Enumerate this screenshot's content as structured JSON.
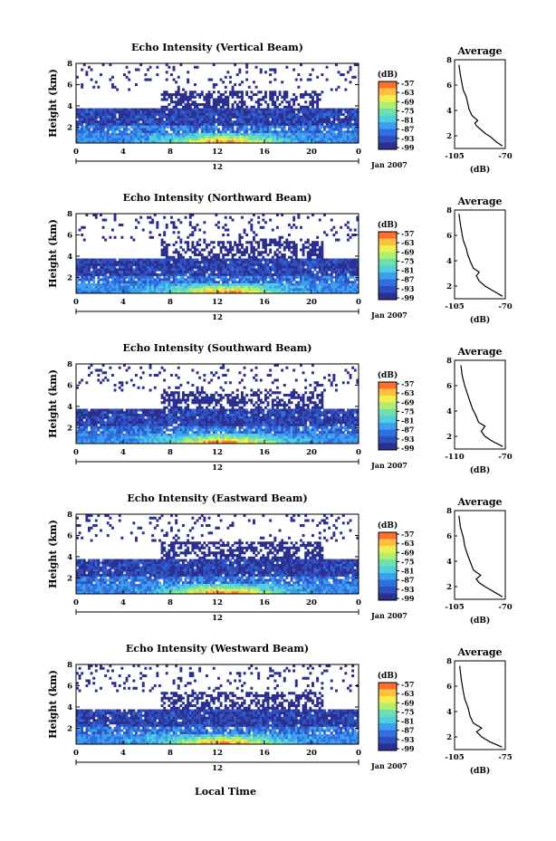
{
  "panels": [
    {
      "title": "Echo Intensity (Vertical Beam)",
      "ylabel": "Height (km)",
      "y_ticks": [
        "2",
        "4",
        "6",
        "8"
      ],
      "x_ticks": [
        "0",
        "4",
        "8",
        "12",
        "16",
        "20",
        "0"
      ],
      "date_label": "12",
      "month_label": "Jan 2007",
      "cbar_unit": "(dB)",
      "cbar_ticks": [
        "-57",
        "-63",
        "-69",
        "-75",
        "-81",
        "-87",
        "-93",
        "-99"
      ],
      "avg_title": "Average",
      "avg_xticks": [
        "-105",
        "-70"
      ],
      "avg_yticks": [
        "2",
        "4",
        "6",
        "8"
      ],
      "avg_xlabel": "(dB)"
    },
    {
      "title": "Echo Intensity (Northward Beam)",
      "ylabel": "Height (km)",
      "y_ticks": [
        "2",
        "4",
        "6",
        "8"
      ],
      "x_ticks": [
        "0",
        "4",
        "8",
        "12",
        "16",
        "20",
        "0"
      ],
      "date_label": "12",
      "month_label": "Jan 2007",
      "cbar_unit": "(dB)",
      "cbar_ticks": [
        "-57",
        "-63",
        "-69",
        "-75",
        "-81",
        "-87",
        "-93",
        "-99"
      ],
      "avg_title": "Average",
      "avg_xticks": [
        "-105",
        "-70"
      ],
      "avg_yticks": [
        "2",
        "4",
        "6",
        "8"
      ],
      "avg_xlabel": "(dB)"
    },
    {
      "title": "Echo Intensity (Southward Beam)",
      "ylabel": "Height (km)",
      "y_ticks": [
        "2",
        "4",
        "6",
        "8"
      ],
      "x_ticks": [
        "0",
        "4",
        "8",
        "12",
        "16",
        "20",
        "0"
      ],
      "date_label": "12",
      "month_label": "Jan 2007",
      "cbar_unit": "(dB)",
      "cbar_ticks": [
        "-57",
        "-63",
        "-69",
        "-75",
        "-81",
        "-87",
        "-93",
        "-99"
      ],
      "avg_title": "Average",
      "avg_xticks": [
        "-110",
        "-70"
      ],
      "avg_yticks": [
        "2",
        "4",
        "6",
        "8"
      ],
      "avg_xlabel": "(dB)"
    },
    {
      "title": "Echo Intensity (Eastward Beam)",
      "ylabel": "Height (km)",
      "y_ticks": [
        "2",
        "4",
        "6",
        "8"
      ],
      "x_ticks": [
        "0",
        "4",
        "8",
        "12",
        "16",
        "20",
        "0"
      ],
      "date_label": "12",
      "month_label": "Jan 2007",
      "cbar_unit": "(dB)",
      "cbar_ticks": [
        "-57",
        "-63",
        "-69",
        "-75",
        "-81",
        "-87",
        "-93",
        "-99"
      ],
      "avg_title": "Average",
      "avg_xticks": [
        "-105",
        "-70"
      ],
      "avg_yticks": [
        "2",
        "4",
        "6",
        "8"
      ],
      "avg_xlabel": "(dB)"
    },
    {
      "title": "Echo Intensity (Westward Beam)",
      "ylabel": "Height (km)",
      "y_ticks": [
        "2",
        "4",
        "6",
        "8"
      ],
      "x_ticks": [
        "0",
        "4",
        "8",
        "12",
        "16",
        "20",
        "0"
      ],
      "date_label": "12",
      "month_label": "Jan 2007",
      "cbar_unit": "(dB)",
      "cbar_ticks": [
        "-57",
        "-63",
        "-69",
        "-75",
        "-81",
        "-87",
        "-93",
        "-99"
      ],
      "avg_title": "Average",
      "avg_xticks": [
        "-105",
        "-75"
      ],
      "avg_yticks": [
        "2",
        "4",
        "6",
        "8"
      ],
      "avg_xlabel": "(dB)"
    }
  ],
  "xlabel": "Local Time",
  "colors": {
    "colormap": [
      "#2b2f8f",
      "#2f4fbf",
      "#2f6fdf",
      "#3f9fef",
      "#4fcfdf",
      "#6fdfaf",
      "#afef6f",
      "#efef4f",
      "#ffbf3f",
      "#ff6f2f"
    ],
    "line": "#000000",
    "background": "#ffffff"
  },
  "chart_data": [
    {
      "type": "heatmap",
      "title": "Echo Intensity (Vertical Beam)",
      "x": "local time, hours 0-24, 12 Jan 2007",
      "xlim": [
        0,
        24
      ],
      "ylim": [
        0.5,
        8
      ],
      "zlim": [
        -99,
        -57
      ],
      "profile_x": [
        -72,
        -76,
        -80,
        -84,
        -87,
        -90,
        -91,
        -89,
        -93,
        -95,
        -96,
        -97,
        -99,
        -100,
        -101,
        -102
      ],
      "profile_y": [
        1.2,
        1.5,
        1.9,
        2.2,
        2.5,
        2.8,
        3.0,
        3.2,
        3.6,
        4.1,
        4.6,
        5.1,
        5.6,
        6.2,
        6.8,
        7.6
      ],
      "profile_xlim": [
        -105,
        -70
      ],
      "profile_ylim": [
        1,
        8
      ]
    },
    {
      "type": "heatmap",
      "title": "Echo Intensity (Northward Beam)",
      "x": "local time, hours 0-24, 12 Jan 2007",
      "xlim": [
        0,
        24
      ],
      "ylim": [
        0.5,
        8
      ],
      "zlim": [
        -99,
        -57
      ],
      "profile_x": [
        -72,
        -78,
        -84,
        -88,
        -90,
        -88,
        -92,
        -94,
        -96,
        -97,
        -99,
        -100,
        -101,
        -102
      ],
      "profile_y": [
        1.2,
        1.6,
        2.0,
        2.4,
        2.8,
        3.1,
        3.4,
        3.9,
        4.5,
        5.0,
        5.6,
        6.2,
        6.9,
        7.7
      ],
      "profile_xlim": [
        -105,
        -70
      ],
      "profile_ylim": [
        1,
        8
      ]
    },
    {
      "type": "heatmap",
      "title": "Echo Intensity (Southward Beam)",
      "x": "local time, hours 0-24, 12 Jan 2007",
      "xlim": [
        0,
        24
      ],
      "ylim": [
        0.5,
        8
      ],
      "zlim": [
        -99,
        -57
      ],
      "profile_x": [
        -72,
        -80,
        -86,
        -89,
        -86,
        -91,
        -93,
        -96,
        -98,
        -100,
        -102,
        -104,
        -105
      ],
      "profile_y": [
        1.2,
        1.6,
        2.0,
        2.4,
        2.8,
        3.1,
        3.6,
        4.2,
        4.8,
        5.4,
        6.0,
        6.8,
        7.6
      ],
      "profile_xlim": [
        -110,
        -70
      ],
      "profile_ylim": [
        1,
        8
      ]
    },
    {
      "type": "heatmap",
      "title": "Echo Intensity (Eastward Beam)",
      "x": "local time, hours 0-24, 12 Jan 2007",
      "xlim": [
        0,
        24
      ],
      "ylim": [
        0.5,
        8
      ],
      "zlim": [
        -99,
        -57
      ],
      "profile_x": [
        -72,
        -78,
        -84,
        -88,
        -90,
        -87,
        -92,
        -94,
        -96,
        -98,
        -99,
        -101,
        -102
      ],
      "profile_y": [
        1.2,
        1.6,
        2.0,
        2.3,
        2.6,
        2.9,
        3.3,
        3.9,
        4.5,
        5.2,
        5.9,
        6.7,
        7.6
      ],
      "profile_xlim": [
        -105,
        -70
      ],
      "profile_ylim": [
        1,
        8
      ]
    },
    {
      "type": "heatmap",
      "title": "Echo Intensity (Westward Beam)",
      "x": "local time, hours 0-24, 12 Jan 2007",
      "xlim": [
        0,
        24
      ],
      "ylim": [
        0.5,
        8
      ],
      "zlim": [
        -99,
        -57
      ],
      "profile_x": [
        -77,
        -84,
        -89,
        -92,
        -89,
        -94,
        -96,
        -97,
        -99,
        -100,
        -101,
        -102
      ],
      "profile_y": [
        1.2,
        1.6,
        2.0,
        2.4,
        2.7,
        3.1,
        3.7,
        4.3,
        5.0,
        5.7,
        6.5,
        7.6
      ],
      "profile_xlim": [
        -105,
        -75
      ],
      "profile_ylim": [
        1,
        8
      ]
    }
  ]
}
